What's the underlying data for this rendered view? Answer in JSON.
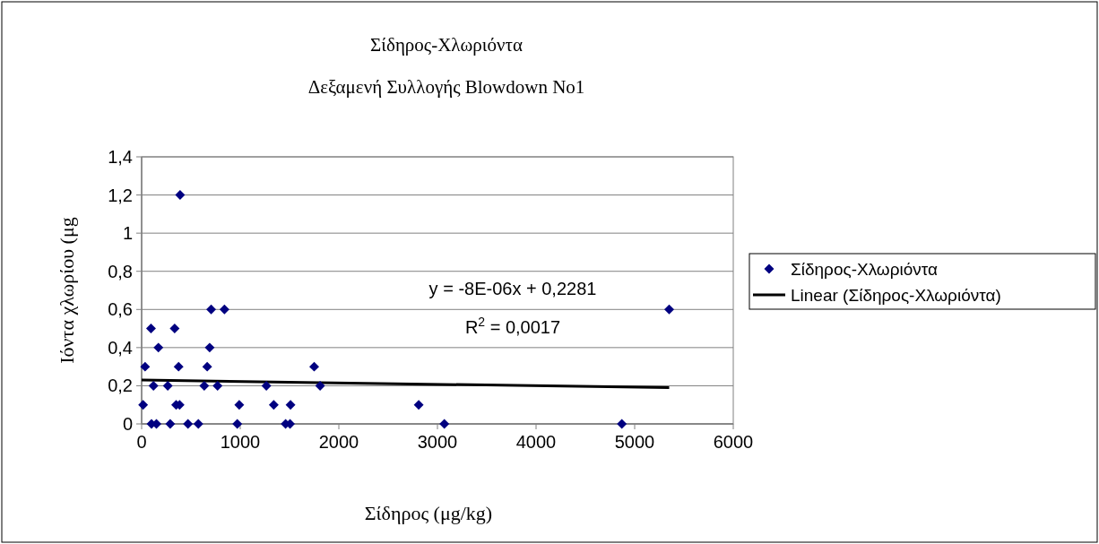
{
  "chart_data": {
    "type": "scatter",
    "title": "Σίδηρος-Χλωριόντα",
    "subtitle": "Δεξαμενή Συλλογής Blowdown No1",
    "xlabel": "Σίδηρος (μg/kg)",
    "ylabel": "Ιόντα χλωρίου (μg",
    "xlim": [
      0,
      6000
    ],
    "xticks": [
      0,
      1000,
      2000,
      3000,
      4000,
      5000,
      6000
    ],
    "ylim": [
      0,
      1.4
    ],
    "yticks": [
      0,
      {
        "value": 0.2,
        "label": "0,2"
      },
      {
        "value": 0.4,
        "label": "0,4"
      },
      {
        "value": 0.6,
        "label": "0,6"
      },
      {
        "value": 0.8,
        "label": "0,8"
      },
      {
        "value": 1,
        "label": "1"
      },
      {
        "value": 1.2,
        "label": "1,2"
      },
      {
        "value": 1.4,
        "label": "1,4"
      }
    ],
    "grid": "y",
    "legend": "right",
    "marker": "diamond",
    "annotations": [
      "y = -8E-06x + 0,2281",
      "R$^{2}$ = 0,0017"
    ],
    "series": [
      {
        "name": "Σίδηρος-Χλωριόντα",
        "color": "#000080",
        "x": [
          15,
          350,
          385,
          990,
          1340,
          1510,
          2810,
          100,
          150,
          290,
          470,
          575,
          970,
          1460,
          1505,
          3070,
          4870,
          120,
          265,
          635,
          770,
          1265,
          1810,
          35,
          375,
          665,
          1750,
          170,
          690,
          95,
          335,
          705,
          840,
          5350,
          390
        ],
        "values": [
          0.1,
          0.1,
          0.1,
          0.1,
          0.1,
          0.1,
          0.1,
          0,
          0,
          0,
          0,
          0,
          0,
          0,
          0,
          0,
          0,
          0.2,
          0.2,
          0.2,
          0.2,
          0.2,
          0.2,
          0.3,
          0.3,
          0.3,
          0.3,
          0.4,
          0.4,
          0.5,
          0.5,
          0.6,
          0.6,
          0.6,
          1.2
        ]
      },
      {
        "name": "Linear (Σίδηρος-Χλωριόντα)",
        "type": "line",
        "marker": "none",
        "color": "#000000",
        "x": [
          0,
          5350
        ],
        "values": [
          0.23,
          0.19
        ]
      }
    ]
  }
}
